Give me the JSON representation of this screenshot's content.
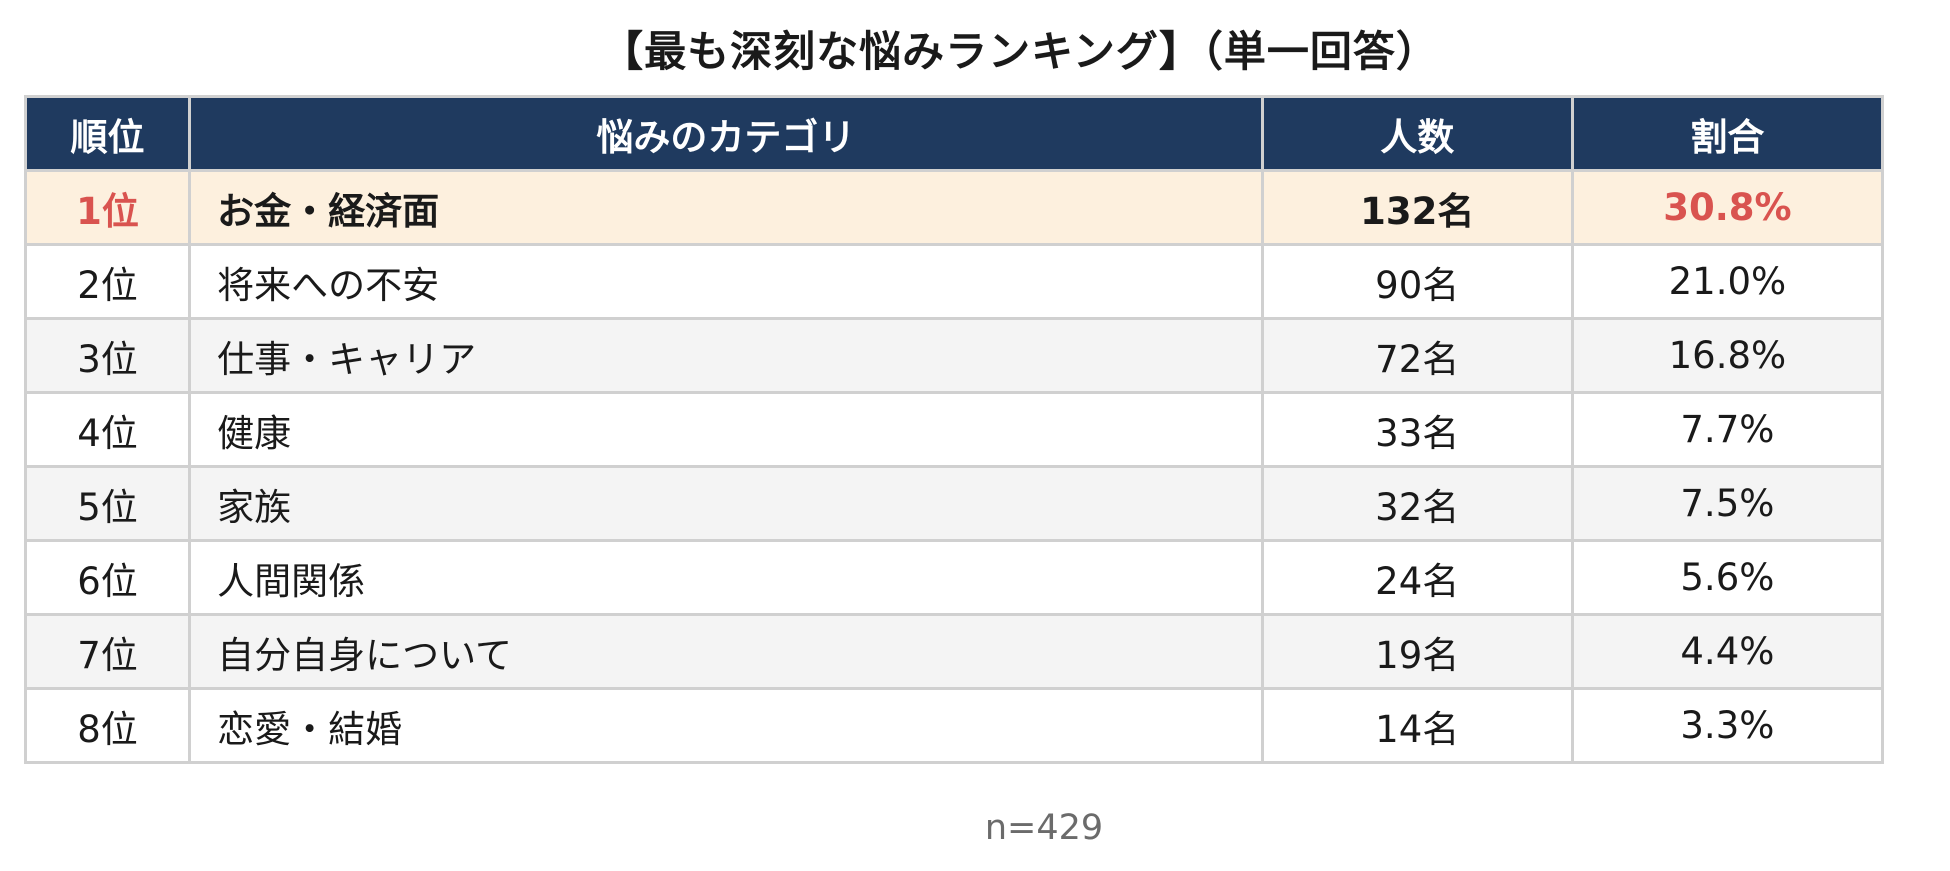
{
  "chart_data": {
    "type": "table",
    "title": "【最も深刻な悩みランキング】（単一回答）",
    "columns": [
      "順位",
      "悩みのカテゴリ",
      "人数",
      "割合"
    ],
    "rows": [
      {
        "rank": "1位",
        "category": "お金・経済面",
        "count": "132名",
        "share": "30.8%"
      },
      {
        "rank": "2位",
        "category": "将来への不安",
        "count": "90名",
        "share": "21.0%"
      },
      {
        "rank": "3位",
        "category": "仕事・キャリア",
        "count": "72名",
        "share": "16.8%"
      },
      {
        "rank": "4位",
        "category": "健康",
        "count": "33名",
        "share": "7.7%"
      },
      {
        "rank": "5位",
        "category": "家族",
        "count": "32名",
        "share": "7.5%"
      },
      {
        "rank": "6位",
        "category": "人間関係",
        "count": "24名",
        "share": "5.6%"
      },
      {
        "rank": "7位",
        "category": "自分自身について",
        "count": "19名",
        "share": "4.4%"
      },
      {
        "rank": "8位",
        "category": "恋愛・結婚",
        "count": "14名",
        "share": "3.3%"
      }
    ],
    "footnote": "n=429"
  },
  "colors": {
    "header_bg": "#1f3a5f",
    "header_text": "#ffffff",
    "highlight_row_bg": "#fdf0de",
    "highlight_text": "#d9534f",
    "stripe_bg": "#f4f4f4",
    "border": "#d0d0d0"
  }
}
